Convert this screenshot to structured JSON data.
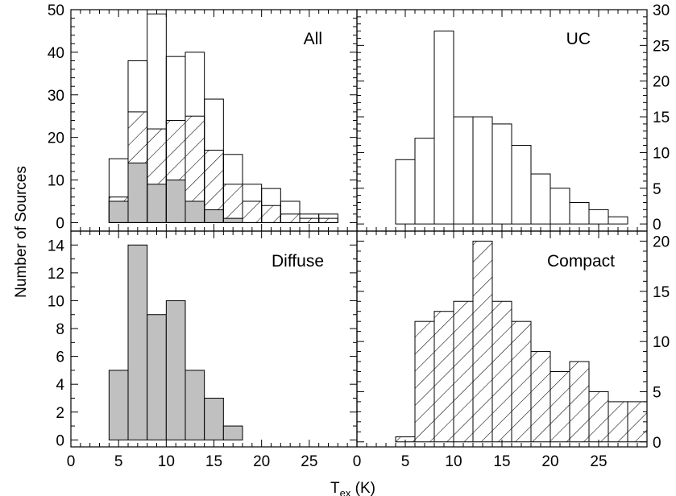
{
  "colors": {
    "axis": "#000000",
    "diffuse_fill": "#c0c0c0",
    "hatch": "#000000",
    "background": "#ffffff"
  },
  "axes_text": {
    "ylabel": "Number of Sources",
    "xlabel_main": "T",
    "xlabel_sub": "ex",
    "xlabel_unit": " (K)"
  },
  "chart_data": [
    {
      "panel": "All",
      "type": "bar",
      "histogram": true,
      "bin_width": 2,
      "xlim": [
        0,
        30
      ],
      "ylim": [
        -2,
        50
      ],
      "xticks": [
        0,
        5,
        10,
        15,
        20,
        25
      ],
      "yticks": [
        0,
        10,
        20,
        30,
        40,
        50
      ],
      "grid": false,
      "series": [
        {
          "style": "outline",
          "bins": [
            4,
            6,
            8,
            10,
            12,
            14,
            16,
            18,
            20,
            22,
            24,
            26,
            28
          ],
          "counts": [
            15,
            38,
            49,
            39,
            40,
            29,
            16,
            9,
            8,
            5,
            2,
            2,
            0
          ]
        },
        {
          "style": "hatched",
          "bins": [
            4,
            6,
            8,
            10,
            12,
            14,
            16,
            18,
            20,
            22,
            24,
            26,
            28
          ],
          "counts": [
            6,
            26,
            22,
            24,
            25,
            17,
            9,
            5,
            4,
            2,
            1,
            1,
            0
          ]
        },
        {
          "style": "filled",
          "bins": [
            4,
            6,
            8,
            10,
            12,
            14,
            16
          ],
          "counts": [
            5,
            14,
            9,
            10,
            5,
            3,
            1
          ]
        }
      ]
    },
    {
      "panel": "UC",
      "type": "bar",
      "histogram": true,
      "bin_width": 2,
      "xlim": [
        0,
        30
      ],
      "ylim": [
        -1,
        30
      ],
      "yticks": [
        0,
        5,
        10,
        15,
        20,
        25,
        30
      ],
      "yaxis_side": "right",
      "grid": false,
      "series": [
        {
          "style": "outline",
          "bins": [
            4,
            6,
            8,
            10,
            12,
            14,
            16,
            18,
            20,
            22,
            24,
            26,
            28
          ],
          "counts": [
            9,
            12,
            27,
            15,
            15,
            14,
            11,
            7,
            5,
            3,
            2,
            1,
            0
          ]
        }
      ]
    },
    {
      "panel": "Diffuse",
      "type": "bar",
      "histogram": true,
      "bin_width": 2,
      "xlim": [
        0,
        30
      ],
      "ylim": [
        -0.5,
        15
      ],
      "xticks": [
        0,
        5,
        10,
        15,
        20,
        25
      ],
      "yticks": [
        0,
        2,
        4,
        6,
        8,
        10,
        12,
        14
      ],
      "grid": false,
      "series": [
        {
          "style": "filled",
          "bins": [
            4,
            6,
            8,
            10,
            12,
            14,
            16
          ],
          "counts": [
            5,
            14,
            9,
            10,
            5,
            3,
            1
          ]
        }
      ]
    },
    {
      "panel": "Compact",
      "type": "bar",
      "histogram": true,
      "bin_width": 2,
      "xlim": [
        0,
        30
      ],
      "ylim": [
        -0.5,
        21
      ],
      "xticks": [
        0,
        5,
        10,
        15,
        20,
        25
      ],
      "yticks": [
        0,
        5,
        10,
        15,
        20
      ],
      "yaxis_side": "right",
      "grid": false,
      "series": [
        {
          "style": "hatched",
          "bins": [
            4,
            6,
            8,
            10,
            12,
            14,
            16,
            18,
            20,
            22,
            24,
            26,
            28
          ],
          "counts": [
            0.5,
            12,
            13,
            14,
            20,
            14,
            12,
            9,
            7,
            8,
            5,
            4,
            4
          ]
        }
      ]
    }
  ]
}
